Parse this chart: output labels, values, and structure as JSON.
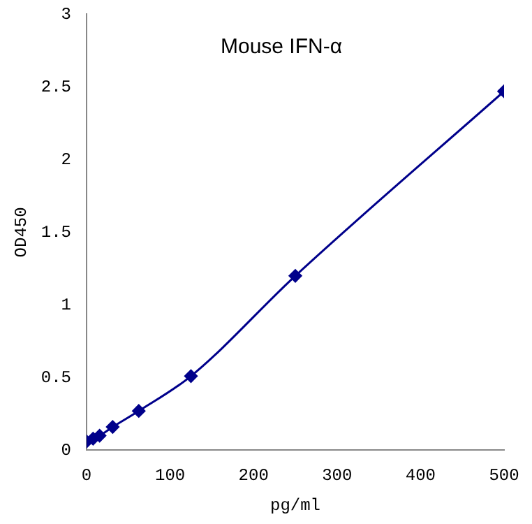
{
  "chart_data": {
    "type": "line",
    "title": "Mouse IFN-α",
    "xlabel": "pg/ml",
    "ylabel": "OD450",
    "x": [
      0,
      7.8,
      15.6,
      31.25,
      62.5,
      125,
      250,
      500
    ],
    "series": [
      {
        "color": "#00008b",
        "values": [
          0.06,
          0.08,
          0.1,
          0.16,
          0.27,
          0.51,
          1.2,
          2.47
        ]
      }
    ],
    "xlim": [
      0,
      500
    ],
    "xticks": [
      0,
      100,
      200,
      300,
      400,
      500
    ],
    "ylim": [
      0,
      3
    ],
    "yticks": [
      0,
      0.5,
      1,
      1.5,
      2,
      2.5,
      3
    ],
    "marker": "diamond",
    "line_style": "solid",
    "grid": false,
    "legend": false
  }
}
